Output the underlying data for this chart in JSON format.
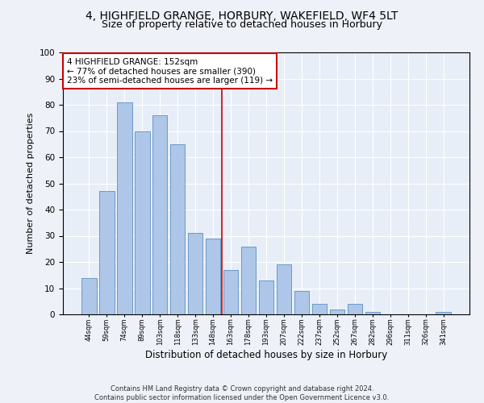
{
  "title1": "4, HIGHFIELD GRANGE, HORBURY, WAKEFIELD, WF4 5LT",
  "title2": "Size of property relative to detached houses in Horbury",
  "xlabel": "Distribution of detached houses by size in Horbury",
  "ylabel": "Number of detached properties",
  "categories": [
    "44sqm",
    "59sqm",
    "74sqm",
    "89sqm",
    "103sqm",
    "118sqm",
    "133sqm",
    "148sqm",
    "163sqm",
    "178sqm",
    "193sqm",
    "207sqm",
    "222sqm",
    "237sqm",
    "252sqm",
    "267sqm",
    "282sqm",
    "296sqm",
    "311sqm",
    "326sqm",
    "341sqm"
  ],
  "values": [
    14,
    47,
    81,
    70,
    76,
    65,
    31,
    29,
    17,
    26,
    13,
    19,
    9,
    4,
    2,
    4,
    1,
    0,
    0,
    0,
    1
  ],
  "bar_color": "#aec6e8",
  "bar_edge_color": "#5a8fc2",
  "property_line_x": 7.5,
  "annotation_text": "4 HIGHFIELD GRANGE: 152sqm\n← 77% of detached houses are smaller (390)\n23% of semi-detached houses are larger (119) →",
  "annotation_box_color": "#ffffff",
  "annotation_box_edge_color": "#cc0000",
  "vline_color": "#cc0000",
  "background_color": "#e8eef7",
  "grid_color": "#ffffff",
  "footer1": "Contains HM Land Registry data © Crown copyright and database right 2024.",
  "footer2": "Contains public sector information licensed under the Open Government Licence v3.0.",
  "ylim": [
    0,
    100
  ],
  "title1_fontsize": 10,
  "title2_fontsize": 9,
  "xlabel_fontsize": 8.5,
  "ylabel_fontsize": 8
}
